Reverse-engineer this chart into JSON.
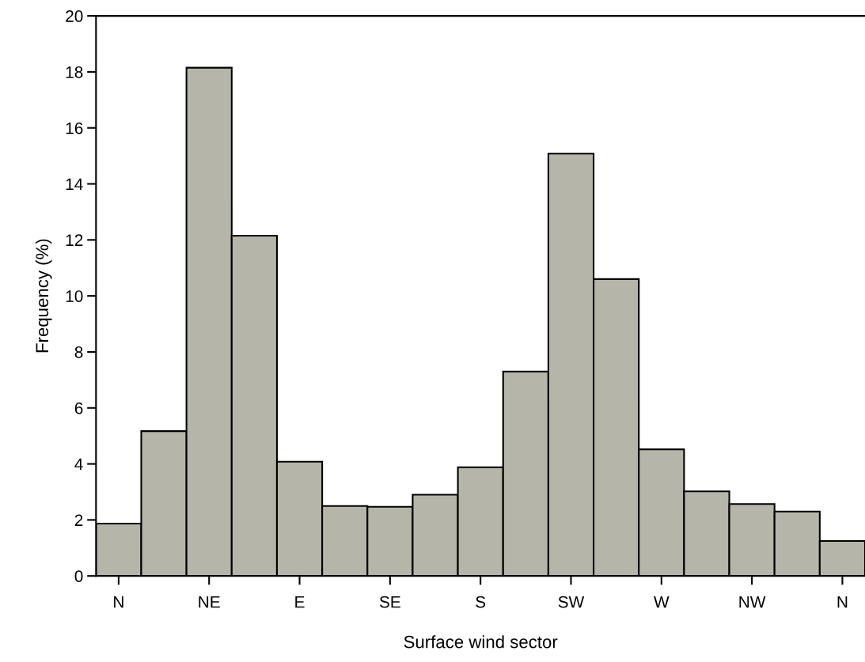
{
  "chart_data": {
    "type": "bar",
    "xlabel": "Surface wind sector",
    "ylabel": "Frequency (%)",
    "categories": [
      "N",
      null,
      "NE",
      null,
      "E",
      null,
      "SE",
      null,
      "S",
      null,
      "SW",
      null,
      "W",
      null,
      "NW",
      null,
      "N"
    ],
    "values": [
      1.87,
      5.17,
      18.15,
      12.15,
      4.08,
      2.5,
      2.47,
      2.9,
      3.88,
      7.3,
      15.08,
      10.6,
      4.52,
      3.02,
      2.57,
      2.3,
      1.25
    ],
    "color": "#b5b5a9",
    "ylim": [
      0,
      20
    ],
    "yticks": [
      0,
      2,
      4,
      6,
      8,
      10,
      12,
      14,
      16,
      18,
      20
    ],
    "grid": false,
    "legend": false
  }
}
